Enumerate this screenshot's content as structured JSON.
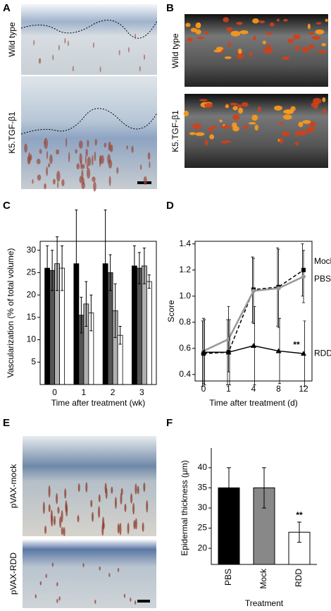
{
  "panels": [
    {
      "letter": "A",
      "labels": [
        "Wild type",
        "K5.TGF-β1"
      ]
    },
    {
      "letter": "B",
      "labels": [
        "Wild type",
        "K5.TGF-β1"
      ]
    },
    {
      "letter": "C"
    },
    {
      "letter": "D"
    },
    {
      "letter": "E",
      "labels": [
        "pVAX-mock",
        "pVAX-RDD"
      ]
    },
    {
      "letter": "F"
    }
  ],
  "chart_data": [
    {
      "type": "groupedbar",
      "y_label": "Vascularization (% of total volume)",
      "x_label": "Time after treatment (wk)",
      "categories": [
        "0",
        "1",
        "2",
        "3"
      ],
      "series": [
        {
          "color": "#000000",
          "values": [
            26,
            27,
            27,
            26.5
          ],
          "errors": [
            5,
            12,
            12,
            4.5
          ]
        },
        {
          "color": "#555555",
          "values": [
            25.5,
            15.5,
            25,
            26
          ],
          "errors": [
            4.5,
            4,
            4,
            3.5
          ]
        },
        {
          "color": "#b0b0b0",
          "values": [
            27,
            18,
            16.5,
            26.5
          ],
          "errors": [
            6,
            5,
            6,
            4
          ]
        },
        {
          "color": "#ffffff",
          "values": [
            26,
            16,
            11,
            23
          ],
          "errors": [
            5,
            4,
            2,
            1.5
          ]
        }
      ],
      "ylim": [
        0,
        32
      ],
      "yticks": [
        5,
        10,
        15,
        20,
        25,
        30
      ]
    },
    {
      "type": "line",
      "y_label": "Score",
      "x_label": "Time after treatment (d)",
      "categories": [
        "0",
        "1",
        "4",
        "8",
        "12"
      ],
      "series": [
        {
          "name": "Mock",
          "color": "#000000",
          "dash": true,
          "marker": "square",
          "values": [
            0.56,
            0.57,
            1.05,
            1.07,
            1.2
          ],
          "errors": [
            0.25,
            0.25,
            0.25,
            0.3,
            0.2
          ]
        },
        {
          "name": "PBS",
          "color": "#999999",
          "dash": false,
          "marker": "circle",
          "values": [
            0.58,
            0.67,
            1.04,
            1.06,
            1.15
          ],
          "errors": [
            0.25,
            0.25,
            0.25,
            0.3,
            0.2
          ]
        },
        {
          "name": "RDD",
          "color": "#000000",
          "dash": false,
          "marker": "triangle",
          "values": [
            0.57,
            0.57,
            0.62,
            0.58,
            0.56
          ],
          "errors": [
            0.25,
            0.25,
            0.3,
            0.25,
            0.25
          ],
          "annotation": "**"
        }
      ],
      "ylim": [
        0.35,
        1.42
      ],
      "yticks": [
        0.4,
        0.6,
        0.8,
        {
          "value": 1,
          "label": "1.0"
        },
        1.2,
        1.4
      ]
    },
    {
      "type": "bar",
      "y_label": "Epidermal thickness (μm)",
      "x_label": "Treatment",
      "categories": [
        "PBS",
        "Mock",
        "RDD"
      ],
      "colors": [
        "#000000",
        "#888888",
        "#ffffff"
      ],
      "values": [
        35,
        35,
        24
      ],
      "errors": [
        5,
        5,
        2.5
      ],
      "annotation": "**",
      "ylim": [
        16,
        44
      ],
      "yticks": [
        20,
        25,
        30,
        35,
        40
      ]
    }
  ]
}
